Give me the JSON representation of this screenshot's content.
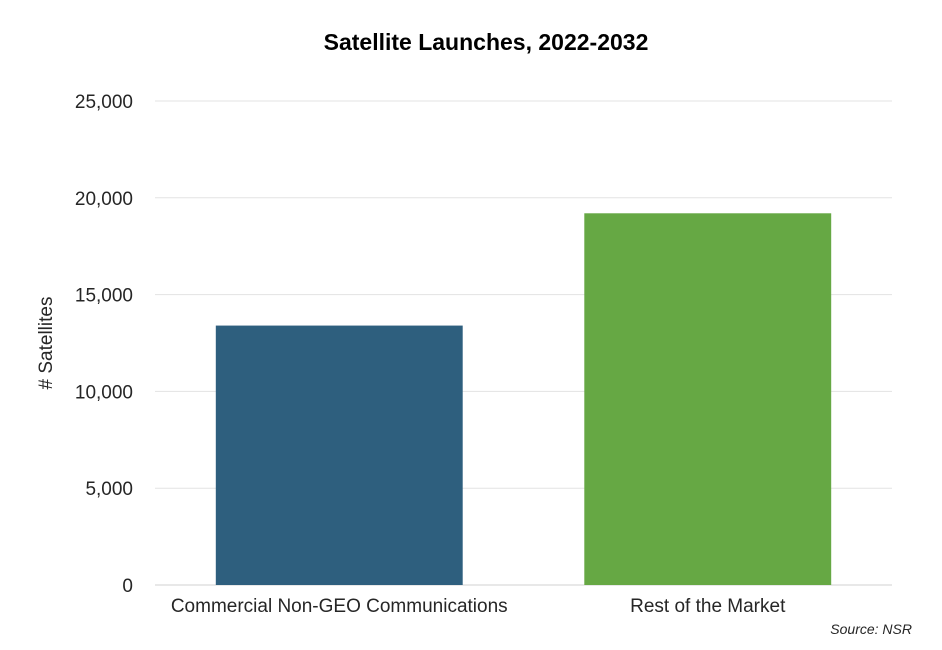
{
  "chart_data": {
    "type": "bar",
    "title": "Satellite Launches, 2022-2032",
    "xlabel": "",
    "ylabel": "# Satellites",
    "categories": [
      "Commercial Non-GEO Communications",
      "Rest of the Market"
    ],
    "values": [
      13400,
      19200
    ],
    "bar_colors": [
      "#2e5f7e",
      "#66a844"
    ],
    "ylim": [
      0,
      25000
    ],
    "yticks": [
      0,
      5000,
      10000,
      15000,
      20000,
      25000
    ],
    "ytick_labels": [
      "0",
      "5,000",
      "10,000",
      "15,000",
      "20,000",
      "25,000"
    ],
    "grid": true,
    "legend": "none"
  },
  "source": "Source: NSR"
}
